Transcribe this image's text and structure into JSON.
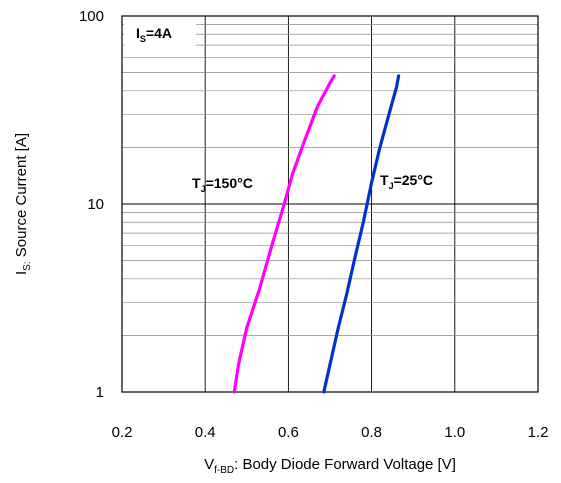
{
  "chart_data": {
    "type": "line",
    "title": "",
    "xlabel": {
      "main": "V",
      "sub": "f-BD",
      "rest": ": Body Diode Forward Voltage [V]"
    },
    "ylabel": {
      "main": "I",
      "sub": "S:",
      "rest": " Source Current [A]"
    },
    "xlim": [
      0.2,
      1.2
    ],
    "ylim": [
      1,
      100
    ],
    "yscale": "log",
    "grid": true,
    "x_ticks": [
      0.2,
      0.4,
      0.6,
      0.8,
      1.0,
      1.2
    ],
    "x_tick_labels": [
      "0.2",
      "0.4",
      "0.6",
      "0.8",
      "1.0",
      "1.2"
    ],
    "y_ticks": [
      1,
      10,
      100
    ],
    "y_tick_labels": [
      "1",
      "10",
      "100"
    ],
    "condition_label": {
      "main": "I",
      "sub": "S",
      "rest": "=4A"
    },
    "series": [
      {
        "color": "#ff00ff",
        "label": {
          "main": "T",
          "sub": "J",
          "rest": "=150°C"
        },
        "x": [
          0.47,
          0.48,
          0.5,
          0.53,
          0.56,
          0.59,
          0.61,
          0.64,
          0.67,
          0.7,
          0.71
        ],
        "y": [
          1.0,
          1.4,
          2.2,
          3.5,
          6.0,
          10.0,
          14.5,
          22.0,
          33.0,
          44.0,
          48.0
        ]
      },
      {
        "color": "#0033cc",
        "label": {
          "main": "T",
          "sub": "J",
          "rest": "=25°C"
        },
        "x": [
          0.685,
          0.7,
          0.72,
          0.74,
          0.76,
          0.78,
          0.8,
          0.82,
          0.84,
          0.86,
          0.865
        ],
        "y": [
          1.0,
          1.4,
          2.2,
          3.3,
          5.2,
          8.0,
          13.0,
          20.0,
          29.0,
          42.0,
          48.0
        ]
      }
    ]
  }
}
